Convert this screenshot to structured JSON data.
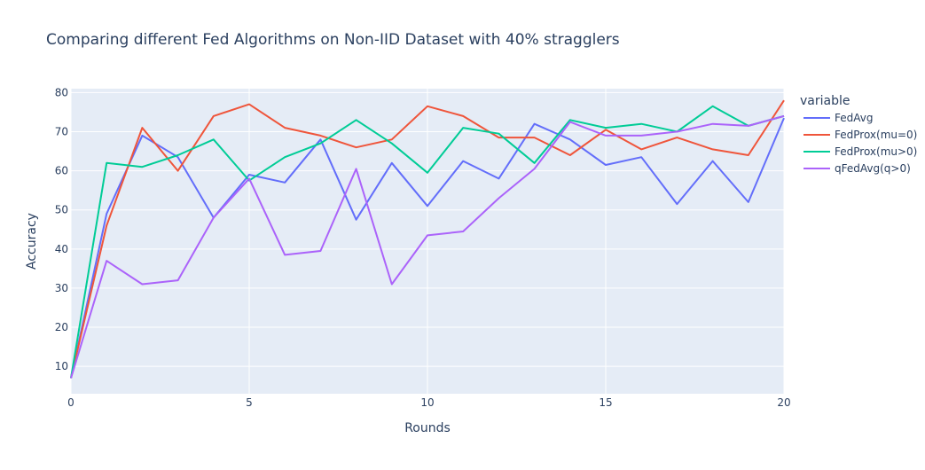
{
  "chart_data": {
    "type": "line",
    "title": "Comparing different Fed Algorithms on Non-IID Dataset with 40% stragglers",
    "xlabel": "Rounds",
    "ylabel": "Accuracy",
    "xlim": [
      0,
      20
    ],
    "ylim": [
      3,
      81
    ],
    "x_ticks": [
      0,
      5,
      10,
      15,
      20
    ],
    "y_ticks": [
      10,
      20,
      30,
      40,
      50,
      60,
      70,
      80
    ],
    "grid": true,
    "legend_title": "variable",
    "legend_position": "right",
    "background": "#e5ecf6",
    "x": [
      0,
      1,
      2,
      3,
      4,
      5,
      6,
      7,
      8,
      9,
      10,
      11,
      12,
      13,
      14,
      15,
      16,
      17,
      18,
      19,
      20
    ],
    "series": [
      {
        "name": "FedAvg",
        "color": "#636efa",
        "values": [
          7,
          49,
          69,
          63.5,
          48,
          59,
          57,
          68,
          47.5,
          62,
          51,
          62.5,
          58,
          72,
          68,
          61.5,
          63.5,
          51.5,
          62.5,
          52,
          73.5
        ]
      },
      {
        "name": "FedProx(mu=0)",
        "color": "#ef553b",
        "values": [
          7,
          46,
          71,
          60,
          74,
          77,
          71,
          69,
          66,
          68,
          76.5,
          74,
          68.5,
          68.5,
          64,
          70.5,
          65.5,
          68.5,
          65.5,
          64,
          78
        ]
      },
      {
        "name": "FedProx(mu>0)",
        "color": "#00cc96",
        "values": [
          7,
          62,
          61,
          64,
          68,
          57.5,
          63.5,
          67,
          73,
          67,
          59.5,
          71,
          69.5,
          62,
          73,
          71,
          72,
          70,
          76.5,
          71.5,
          74
        ]
      },
      {
        "name": "qFedAvg(q>0)",
        "color": "#ab63fa",
        "values": [
          7,
          37,
          31,
          32,
          48,
          58,
          38.5,
          39.5,
          60.5,
          31,
          43.5,
          44.5,
          53,
          60.5,
          72.5,
          69,
          69,
          70,
          72,
          71.5,
          74
        ]
      }
    ]
  }
}
